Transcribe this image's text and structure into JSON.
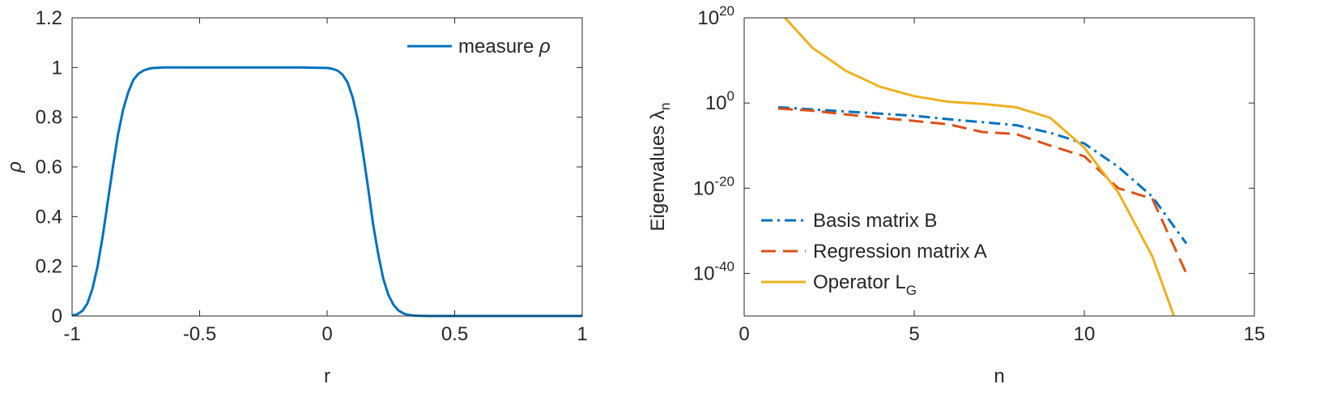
{
  "chart_data": [
    {
      "type": "line",
      "title": "",
      "xlabel": "r",
      "ylabel": "ρ",
      "xlim": [
        -1,
        1
      ],
      "ylim": [
        0,
        1.2
      ],
      "xticks": [
        -1,
        -0.5,
        0,
        0.5,
        1
      ],
      "xtick_labels": [
        "-1",
        "-0.5",
        "0",
        "0.5",
        "1"
      ],
      "yticks": [
        0,
        0.2,
        0.4,
        0.6,
        0.8,
        1,
        1.2
      ],
      "ytick_labels": [
        "0",
        "0.2",
        "0.4",
        "0.6",
        "0.8",
        "1",
        "1.2"
      ],
      "grid": false,
      "legend_position": "top-right",
      "series": [
        {
          "name": "measure",
          "name_symbol": "ρ",
          "color": "#0072BD",
          "style": "solid",
          "x": [
            -1.0,
            -0.98,
            -0.96,
            -0.94,
            -0.92,
            -0.9,
            -0.88,
            -0.86,
            -0.84,
            -0.82,
            -0.8,
            -0.78,
            -0.76,
            -0.74,
            -0.72,
            -0.7,
            -0.68,
            -0.66,
            -0.64,
            -0.62,
            -0.6,
            -0.55,
            -0.5,
            -0.4,
            -0.3,
            -0.2,
            -0.1,
            0.0,
            0.02,
            0.04,
            0.06,
            0.08,
            0.1,
            0.12,
            0.14,
            0.16,
            0.18,
            0.2,
            0.22,
            0.24,
            0.26,
            0.28,
            0.3,
            0.32,
            0.34,
            0.36,
            0.38,
            0.4,
            0.45,
            0.5,
            0.6,
            0.8,
            1.0
          ],
          "y": [
            0.002,
            0.007,
            0.02,
            0.05,
            0.11,
            0.2,
            0.32,
            0.46,
            0.6,
            0.73,
            0.83,
            0.9,
            0.95,
            0.975,
            0.988,
            0.995,
            0.998,
            0.999,
            1.0,
            1.0,
            1.0,
            1.0,
            1.0,
            1.0,
            1.0,
            1.0,
            1.0,
            0.998,
            0.995,
            0.988,
            0.972,
            0.94,
            0.88,
            0.79,
            0.66,
            0.52,
            0.37,
            0.25,
            0.15,
            0.085,
            0.045,
            0.022,
            0.01,
            0.004,
            0.0015,
            0.0005,
            0.0002,
            0.0,
            0.0,
            0.0,
            0.0,
            0.0,
            0.0
          ]
        }
      ]
    },
    {
      "type": "line",
      "title": "",
      "xlabel": "n",
      "ylabel": "Eigenvalues λ",
      "ylabel_subscript": "n",
      "xlim": [
        0,
        15
      ],
      "ylim_log10": [
        -50,
        20
      ],
      "y_scale": "log",
      "xticks": [
        0,
        5,
        10,
        15
      ],
      "xtick_labels": [
        "0",
        "5",
        "10",
        "15"
      ],
      "ytick_base": "10",
      "yticks_exponents": [
        20,
        0,
        -20,
        -40
      ],
      "ytick_exponent_labels": [
        "20",
        "0",
        "-20",
        "-40"
      ],
      "grid": false,
      "legend_position": "bottom-left",
      "series": [
        {
          "name": "Basis matrix B",
          "color": "#0072BD",
          "style": "dashdot",
          "x": [
            1,
            2,
            3,
            4,
            5,
            6,
            7,
            8,
            9,
            10,
            11,
            12,
            13
          ],
          "log10_y": [
            -1,
            -1.5,
            -2,
            -2.5,
            -3,
            -3.8,
            -4.5,
            -5.2,
            -7,
            -9.5,
            -15,
            -22,
            -33
          ]
        },
        {
          "name": "Regression matrix A",
          "name_subscript": "",
          "color": "#D95319",
          "style": "dashed",
          "x": [
            1,
            2,
            3,
            4,
            5,
            6,
            7,
            8,
            9,
            10,
            11,
            12,
            13
          ],
          "log10_y": [
            -1.3,
            -1.8,
            -2.7,
            -3.5,
            -4.2,
            -5,
            -6.8,
            -7.3,
            -10,
            -12.5,
            -20,
            -22.5,
            -40
          ]
        },
        {
          "name": "Operator L",
          "name_subscript": "G",
          "color": "#EDB120",
          "style": "solid",
          "x": [
            1.2,
            2,
            3,
            4,
            5,
            6,
            7,
            8,
            9,
            10,
            11,
            12,
            13
          ],
          "log10_y": [
            20,
            13,
            7.5,
            3.8,
            1.6,
            0.3,
            -0.2,
            -1,
            -3.5,
            -10.5,
            -21,
            -36,
            -58
          ]
        }
      ]
    }
  ]
}
